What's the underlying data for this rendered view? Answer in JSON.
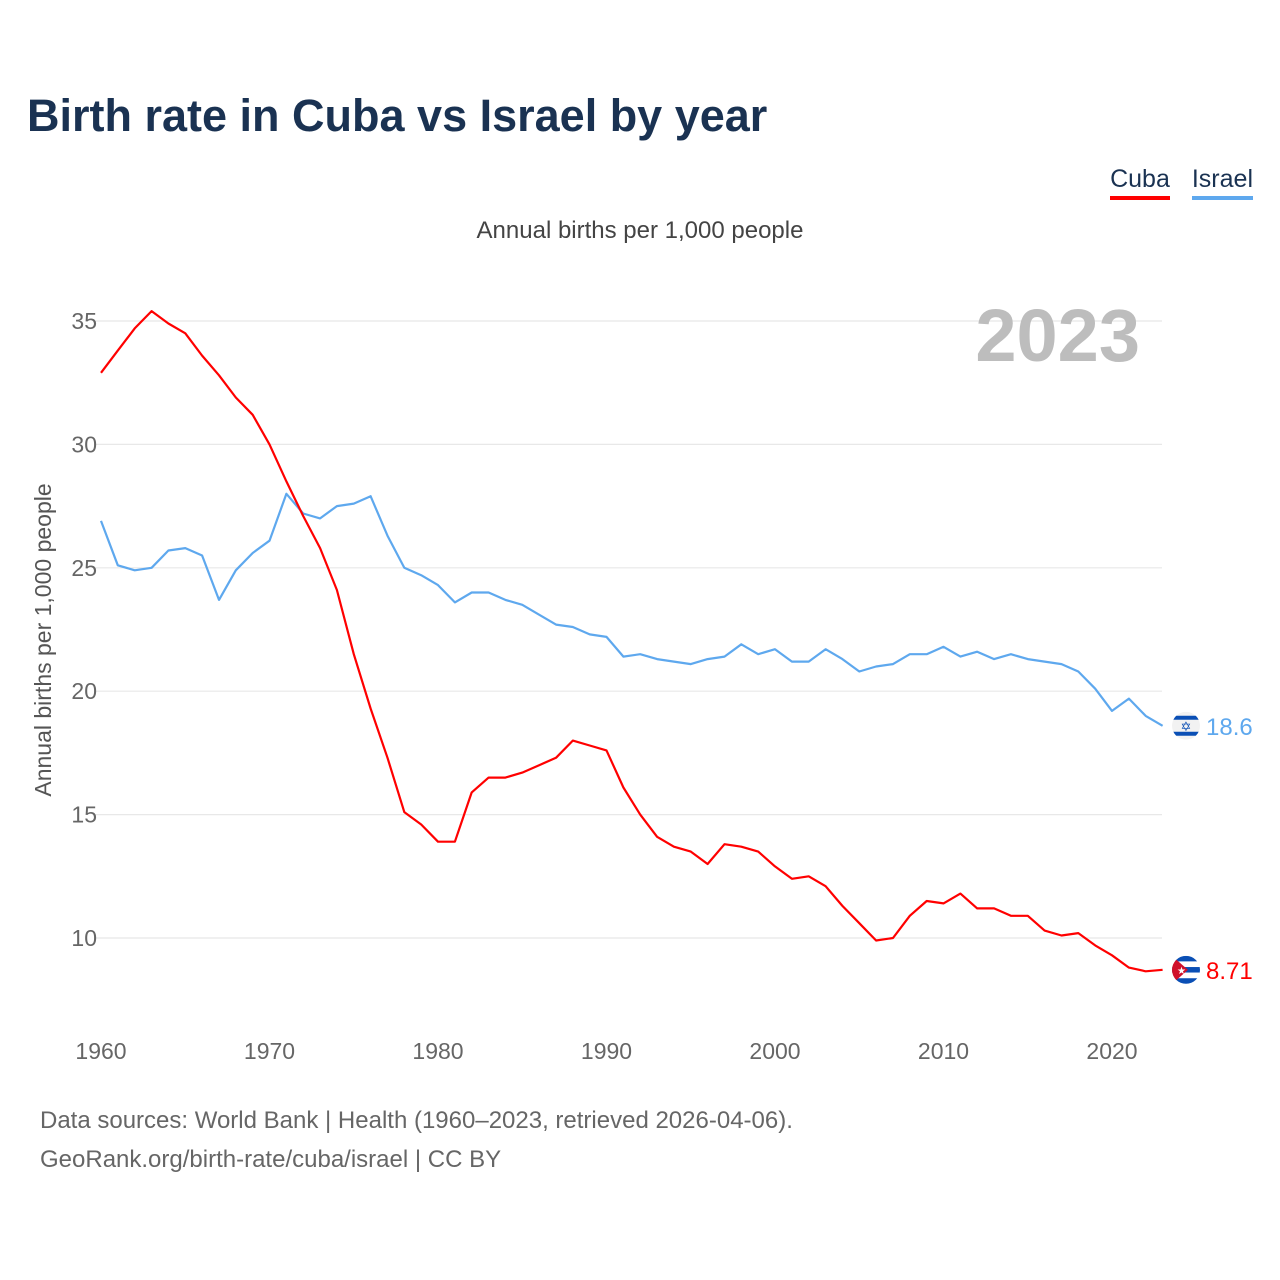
{
  "title": "Birth rate in Cuba vs Israel by year",
  "legend": [
    {
      "label": "Cuba",
      "color": "#ff0000"
    },
    {
      "label": "Israel",
      "color": "#5ea8ee"
    }
  ],
  "footer": {
    "line1": "Data sources: World Bank | Health (1960–2023, retrieved 2026-04-06).",
    "line2": "GeoRank.org/birth-rate/cuba/israel | CC BY"
  },
  "chart_data": {
    "type": "line",
    "title": "Annual births per 1,000 people",
    "ylabel": "Annual births per 1,000 people",
    "xlabel": "",
    "year_label": "2023",
    "xlim": [
      1960,
      2023
    ],
    "ylim": [
      7,
      36.5
    ],
    "yticks": [
      10,
      15,
      20,
      25,
      30,
      35
    ],
    "xticks": [
      1960,
      1970,
      1980,
      1990,
      2000,
      2010,
      2020
    ],
    "grid": true,
    "legend_position": "top-right",
    "x_start": 1960,
    "series": [
      {
        "name": "Cuba",
        "color": "#ff0000",
        "end_label": "8.71",
        "flag": "cuba-flag-icon",
        "values": [
          32.9,
          33.8,
          34.7,
          35.4,
          34.9,
          34.5,
          33.6,
          32.8,
          31.9,
          31.2,
          30.0,
          28.5,
          27.1,
          25.8,
          24.1,
          21.5,
          19.3,
          17.3,
          15.1,
          14.6,
          13.9,
          13.9,
          15.9,
          16.5,
          16.5,
          16.7,
          17.0,
          17.3,
          18.0,
          17.8,
          17.6,
          16.1,
          15.0,
          14.1,
          13.7,
          13.5,
          13.0,
          13.8,
          13.7,
          13.5,
          12.9,
          12.4,
          12.5,
          12.1,
          11.3,
          10.6,
          9.9,
          10.0,
          10.9,
          11.5,
          11.4,
          11.8,
          11.2,
          11.2,
          10.9,
          10.9,
          10.3,
          10.1,
          10.2,
          9.7,
          9.3,
          8.8,
          8.65,
          8.71
        ]
      },
      {
        "name": "Israel",
        "color": "#5ea8ee",
        "end_label": "18.6",
        "flag": "israel-flag-icon",
        "values": [
          26.9,
          25.1,
          24.9,
          25.0,
          25.7,
          25.8,
          25.5,
          23.7,
          24.9,
          25.6,
          26.1,
          28.0,
          27.2,
          27.0,
          27.5,
          27.6,
          27.9,
          26.3,
          25.0,
          24.7,
          24.3,
          23.6,
          24.0,
          24.0,
          23.7,
          23.5,
          23.1,
          22.7,
          22.6,
          22.3,
          22.2,
          21.4,
          21.5,
          21.3,
          21.2,
          21.1,
          21.3,
          21.4,
          21.9,
          21.5,
          21.7,
          21.2,
          21.2,
          21.7,
          21.3,
          20.8,
          21.0,
          21.1,
          21.5,
          21.5,
          21.8,
          21.4,
          21.6,
          21.3,
          21.5,
          21.3,
          21.2,
          21.1,
          20.8,
          20.1,
          19.2,
          19.7,
          19.0,
          18.6
        ]
      }
    ]
  }
}
